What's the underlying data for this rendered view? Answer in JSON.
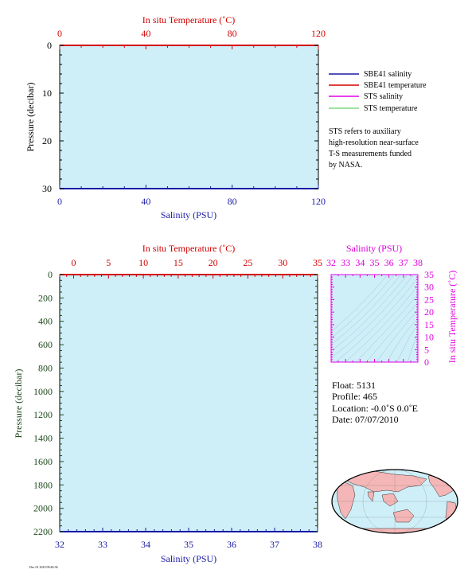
{
  "colors": {
    "plot_bg": "#cfeff8",
    "temperature": "#d40000",
    "salinity_axis": "#1a1aa6",
    "sts_salinity": "#e000e0",
    "sts_temperature": "#7fd87f",
    "pressure_axis_bottom": "#1e4a1e",
    "land": "#f4b6b6",
    "ocean": "#cfeff8"
  },
  "legend": {
    "items": [
      {
        "label": "SBE41 salinity",
        "color": "#1a1aa6"
      },
      {
        "label": "SBE41 temperature",
        "color": "#d40000"
      },
      {
        "label": "STS salinity",
        "color": "#e000e0"
      },
      {
        "label": "STS temperature",
        "color": "#7fd87f"
      }
    ],
    "note_lines": [
      "STS refers to auxiliary",
      "high-resolution near-surface",
      "T-S measurements funded",
      "by NASA."
    ]
  },
  "float_info": {
    "float_line": "Float:  5131",
    "profile_line": "Profile:  465",
    "location_line": "Location:  -0.0˚S   0.0˚E",
    "date_line": "Date:  07/07/2010"
  },
  "footer_tag": "Dec 01 2010 09:40:36",
  "chart_data": [
    {
      "id": "upper_profile",
      "type": "line",
      "title": "",
      "top_axis_label": "In situ Temperature (˚C)",
      "top_ticks": [
        "0",
        "40",
        "80",
        "120"
      ],
      "top_range": [
        0,
        120
      ],
      "bottom_axis_label": "Salinity (PSU)",
      "bottom_ticks": [
        "0",
        "40",
        "80",
        "120"
      ],
      "bottom_range": [
        0,
        120
      ],
      "left_axis_label": "Pressure (decibar)",
      "left_ticks": [
        "0",
        "10",
        "20",
        "30"
      ],
      "y_range": [
        0,
        30
      ],
      "series": []
    },
    {
      "id": "full_profile",
      "type": "line",
      "title": "",
      "top_axis_label": "In situ Temperature (˚C)",
      "top_ticks": [
        "0",
        "5",
        "10",
        "15",
        "20",
        "25",
        "30",
        "35"
      ],
      "top_range": [
        -2,
        35
      ],
      "bottom_axis_label": "Salinity (PSU)",
      "bottom_ticks": [
        "32",
        "33",
        "34",
        "35",
        "36",
        "37",
        "38"
      ],
      "bottom_range": [
        32,
        38
      ],
      "left_axis_label": "Pressure (decibar)",
      "left_ticks": [
        "0",
        "200",
        "400",
        "600",
        "800",
        "1000",
        "1200",
        "1400",
        "1600",
        "1800",
        "2000",
        "2200"
      ],
      "y_range": [
        0,
        2200
      ],
      "series": []
    },
    {
      "id": "ts_diagram",
      "type": "scatter",
      "title": "",
      "top_axis_label": "Salinity (PSU)",
      "top_ticks": [
        "32",
        "33",
        "34",
        "35",
        "36",
        "37",
        "38"
      ],
      "x_range": [
        32,
        38
      ],
      "right_axis_label": "In situ Temperature (˚C)",
      "right_ticks": [
        "0",
        "5",
        "10",
        "15",
        "20",
        "25",
        "30",
        "35"
      ],
      "y_range": [
        0,
        35
      ],
      "series": []
    },
    {
      "id": "location_map",
      "type": "map",
      "projection": "robinson",
      "float_lat": -0.0,
      "float_lon": 0.0
    }
  ]
}
